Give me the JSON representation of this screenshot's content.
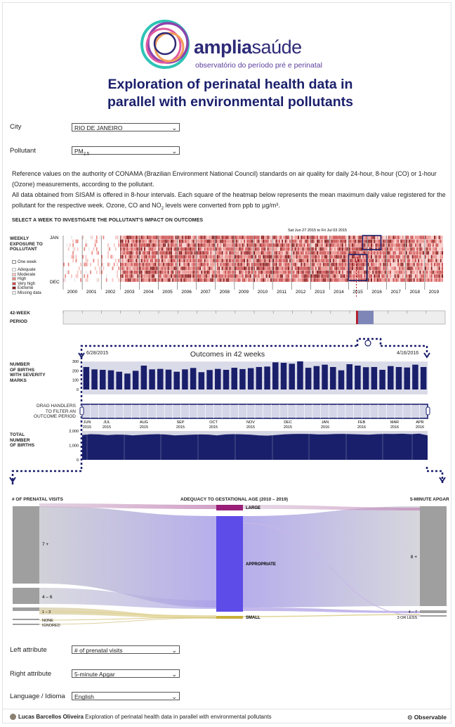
{
  "brand": {
    "name_bold": "amplia",
    "name_light": "saúde",
    "subtitle": "observatório do período pré e perinatal"
  },
  "title_line1": "Exploration of perinatal health data in",
  "title_line2": "parallel with environmental pollutants",
  "controls": {
    "city_label": "City",
    "city_value": "RIO DE JANEIRO",
    "pollutant_label": "Pollutant",
    "pollutant_value": "PM",
    "pollutant_sub": "2.5"
  },
  "description": {
    "p1": "Reference values on the authority of CONAMA (Brazilian Environment National Council) standards on air quality for daily 24-hour, 8-hour (CO) or 1-hour (Ozone) measurements, according to the pollutant.",
    "p2": "All data obtained from SISAM is offered in 8-hour intervals. Each square of the heatmap below represents the mean maximum daily value registered for the pollutant for the respective week. Ozone, CO and NO",
    "p2_sub": "2",
    "p2_end": " levels were converted from ppb to µg/m³."
  },
  "heatmap": {
    "section_title": "SELECT A WEEK TO INVESTIGATE THE POLLUTANT'S IMPACT ON OUTCOMES",
    "side_title": [
      "WEEKLY",
      "EXPOSURE TO",
      "POLLUTANT"
    ],
    "month_top": "JAN",
    "month_bottom": "DEC",
    "selected_week": "Sat Jun 27 2015 to Fri Jul 03 2015",
    "legend_one_week": "One week",
    "legend": [
      {
        "label": "Adequate",
        "color": "#ffffff"
      },
      {
        "label": "Moderate",
        "color": "#f6c7c4"
      },
      {
        "label": "High",
        "color": "#e98b86"
      },
      {
        "label": "Very high",
        "color": "#cc4a4a"
      },
      {
        "label": "Extreme",
        "color": "#8a1717"
      },
      {
        "label": "Missing data",
        "color": "#ececec"
      }
    ],
    "years": [
      "2000",
      "2001",
      "2002",
      "2003",
      "2004",
      "2005",
      "2006",
      "2007",
      "2008",
      "2009",
      "2010",
      "2011",
      "2012",
      "2013",
      "2014",
      "2015",
      "2016",
      "2017",
      "2018",
      "2019"
    ]
  },
  "period": {
    "label_line1": "42-WEEK",
    "label_line2": "PERIOD"
  },
  "outcomes": {
    "title": "Outcomes in 42 weeks",
    "start_date": "6/28/2015",
    "end_date": "4/16/2016",
    "births_label": [
      "NUMBER",
      "OF BIRTHS",
      "WITH SEVERITY",
      "MARKS"
    ],
    "drag_label": [
      "DRAG HANDLERS",
      "TO FILTER AN",
      "OUTCOME PERIOD"
    ],
    "total_label": [
      "TOTAL",
      "NUMBER",
      "OF BIRTHS"
    ],
    "severity_ticks": [
      "300",
      "200",
      "100",
      "0"
    ],
    "total_ticks": [
      "2,000",
      "1,000",
      "0"
    ],
    "months": [
      [
        "JUN",
        "2015"
      ],
      [
        "JUL",
        "2015"
      ],
      [
        "AUG",
        "2015"
      ],
      [
        "SEP",
        "2015"
      ],
      [
        "OCT",
        "2015"
      ],
      [
        "NOV",
        "2015"
      ],
      [
        "DEC",
        "2015"
      ],
      [
        "JAN",
        "2016"
      ],
      [
        "FEB",
        "2016"
      ],
      [
        "MAR",
        "2016"
      ],
      [
        "APR",
        "2016"
      ]
    ]
  },
  "chart_data": [
    {
      "type": "bar",
      "title": "Outcomes in 42 weeks",
      "ylabel": "Number of births with severity marks",
      "ylim": [
        0,
        300
      ],
      "values": [
        240,
        215,
        210,
        205,
        190,
        170,
        200,
        255,
        215,
        220,
        212,
        190,
        215,
        230,
        185,
        208,
        220,
        210,
        232,
        218,
        228,
        240,
        245,
        290,
        285,
        275,
        300,
        232,
        250,
        265,
        240,
        205,
        270,
        255,
        238,
        240,
        210,
        250,
        240,
        235,
        265,
        240
      ]
    },
    {
      "type": "area",
      "title": "Total number of births",
      "ylim": [
        0,
        2000
      ],
      "values": [
        1720,
        1780,
        1760,
        1710,
        1750,
        1740,
        1700,
        1730,
        1760,
        1780,
        1750,
        1700,
        1720,
        1740,
        1760,
        1750,
        1700,
        1760,
        1780,
        1770,
        1740,
        1700,
        1680,
        1720,
        1770,
        1790,
        1800,
        1790,
        1760,
        1770,
        1790,
        1800,
        1780,
        1760,
        1740,
        1780,
        1800,
        1790,
        1810,
        1780,
        1820,
        1700
      ]
    },
    {
      "type": "sankey",
      "title": "Adequacy to gestational age (2010 - 2019)",
      "left_attribute": "# of prenatal visits",
      "middle_attribute": "Adequacy to gestational age",
      "right_attribute": "5-minute Apgar",
      "left_nodes": [
        "7 +",
        "4 – 6",
        "1 – 3",
        "NONE",
        "IGNORED"
      ],
      "middle_nodes": [
        "LARGE",
        "APPROPRIATE",
        "SMALL"
      ],
      "right_nodes": [
        "8 +",
        "4 – 7",
        "3 OR LESS"
      ]
    }
  ],
  "sankey": {
    "left_header": "# OF PRENATAL VISITS",
    "mid_header": "ADEQUACY TO GESTATIONAL AGE (2010 – 2019)",
    "right_header": "5-MINUTE APGAR",
    "left_nodes": [
      "7 +",
      "4 – 6",
      "1 – 3",
      "NONE",
      "IGNORED"
    ],
    "mid_nodes": [
      "LARGE",
      "APPROPRIATE",
      "SMALL"
    ],
    "right_nodes": [
      "8 +",
      "4 – 7",
      "3 OR LESS"
    ]
  },
  "bottom_controls": {
    "left_label": "Left attribute",
    "left_value": "# of prenatal visits",
    "right_label": "Right attribute",
    "right_value": "5-minute Apgar",
    "lang_label": "Language / Idioma",
    "lang_value": "English"
  },
  "footer": {
    "author": "Lucas Barcellos Oliveira",
    "notebook": "Exploration of perinatal health data in parallel with environmental pollutants",
    "platform": "Observable"
  }
}
